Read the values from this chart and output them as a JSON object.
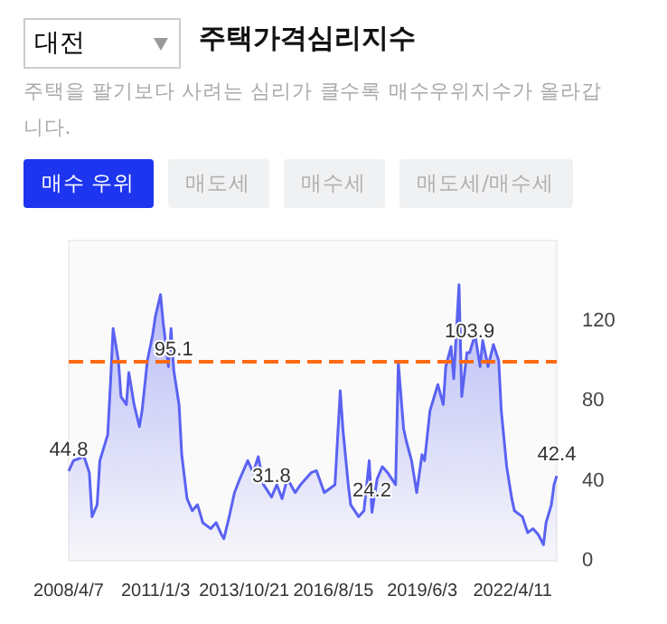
{
  "chart_data": {
    "type": "area",
    "title": "주택가격심리지수",
    "subtitle": "주택을 팔기보다 사려는 심리가 클수록 매수우위지수가 올라갑니다.",
    "annotations": [
      "대전",
      "매수 우위",
      "매도세",
      "매수세",
      "매도세/매수세"
    ],
    "x": [
      "2008-04-07",
      "2008-06",
      "2008-10",
      "2008-12",
      "2009-01",
      "2009-03",
      "2009-04",
      "2009-07",
      "2009-08",
      "2009-09",
      "2009-11",
      "2009-12",
      "2010-02",
      "2010-03",
      "2010-05",
      "2010-07",
      "2010-08",
      "2010-10",
      "2010-12",
      "2011-01",
      "2011-03",
      "2011-04",
      "2011-06",
      "2011-07",
      "2011-08",
      "2011-10",
      "2011-11",
      "2012-01",
      "2012-03",
      "2012-05",
      "2012-07",
      "2012-10",
      "2012-12",
      "2013-02",
      "2013-03",
      "2013-05",
      "2013-07",
      "2013-09",
      "2013-12",
      "2014-02",
      "2014-04",
      "2014-06",
      "2014-09",
      "2014-11",
      "2015-01",
      "2015-03",
      "2015-06",
      "2015-08",
      "2015-12",
      "2016-02",
      "2016-05",
      "2016-09",
      "2016-11",
      "2016-12",
      "2017-02",
      "2017-03",
      "2017-06",
      "2017-08",
      "2017-10",
      "2017-11",
      "2018-01",
      "2018-03",
      "2018-05",
      "2018-08",
      "2018-09",
      "2018-11",
      "2018-12",
      "2019-02",
      "2019-04",
      "2019-06",
      "2019-07",
      "2019-09",
      "2019-12",
      "2020-02",
      "2020-03",
      "2020-05",
      "2020-06",
      "2020-08",
      "2020-09",
      "2020-11",
      "2020-12",
      "2021-02",
      "2021-04",
      "2021-05",
      "2021-07",
      "2021-09",
      "2021-11",
      "2021-12",
      "2022-02",
      "2022-04",
      "2022-05",
      "2022-08",
      "2022-10",
      "2022-12",
      "2023-02",
      "2023-04",
      "2023-05",
      "2023-07",
      "2023-08",
      "2023-09"
    ],
    "series": [
      {
        "color": "#5a62f2",
        "values": [
          44.8,
          50,
          52,
          44,
          22,
          28,
          50,
          63,
          88,
          116,
          100,
          82,
          78,
          94,
          78,
          67,
          75,
          100,
          113,
          122,
          133,
          119,
          97,
          116,
          95.1,
          78,
          53,
          31,
          25,
          28,
          19,
          16,
          19,
          13,
          11,
          22,
          34,
          41,
          50,
          44,
          52,
          38,
          31.8,
          38,
          31,
          41,
          34,
          38,
          44,
          45,
          34,
          38,
          85,
          66,
          38,
          28,
          22,
          25,
          50,
          24.2,
          41,
          47,
          44,
          38,
          99,
          66,
          60,
          50,
          34,
          53,
          50,
          75,
          88,
          78,
          97,
          107,
          91,
          138,
          82,
          104,
          103.9,
          113,
          97,
          110,
          97,
          108,
          100,
          75,
          47,
          31,
          25,
          22,
          14,
          16,
          13,
          8,
          19,
          28,
          38,
          42.4
        ],
        "value_labels": [
          "44.8",
          null,
          null,
          null,
          null,
          null,
          null,
          null,
          null,
          null,
          null,
          null,
          null,
          null,
          null,
          null,
          null,
          null,
          null,
          null,
          null,
          null,
          null,
          null,
          "95.1",
          null,
          null,
          null,
          null,
          null,
          null,
          null,
          null,
          null,
          null,
          null,
          null,
          null,
          null,
          null,
          null,
          null,
          "31.8",
          null,
          null,
          null,
          null,
          null,
          null,
          null,
          null,
          null,
          null,
          null,
          null,
          null,
          null,
          null,
          null,
          "24.2",
          null,
          null,
          null,
          null,
          null,
          null,
          null,
          null,
          null,
          null,
          null,
          null,
          null,
          null,
          null,
          null,
          null,
          null,
          null,
          null,
          "103.9",
          null,
          null,
          null,
          null,
          null,
          null,
          null,
          null,
          null,
          null,
          null,
          null,
          null,
          null,
          null,
          null,
          null,
          null,
          "42.4"
        ]
      }
    ],
    "xlim": [
      "2008-04-07",
      "2023-09"
    ],
    "xticks": [
      {
        "value": "2008-04-07",
        "label": "2008/4/7"
      },
      {
        "value": "2011-01-03",
        "label": "2011/1/3"
      },
      {
        "value": "2013-10-21",
        "label": "2013/10/21"
      },
      {
        "value": "2016-08-15",
        "label": "2016/8/15"
      },
      {
        "value": "2019-06-03",
        "label": "2019/6/3"
      },
      {
        "value": "2022-04-11",
        "label": "2022/4/11"
      }
    ],
    "ylim": [
      0,
      160
    ],
    "yticks": [
      0,
      40,
      80,
      120
    ],
    "ref_lines": [
      {
        "axis": "y",
        "value": 100,
        "color": "#ff6a13",
        "line_style": "dashed"
      }
    ],
    "grid": false,
    "marker": "none",
    "line_style": "solid"
  }
}
